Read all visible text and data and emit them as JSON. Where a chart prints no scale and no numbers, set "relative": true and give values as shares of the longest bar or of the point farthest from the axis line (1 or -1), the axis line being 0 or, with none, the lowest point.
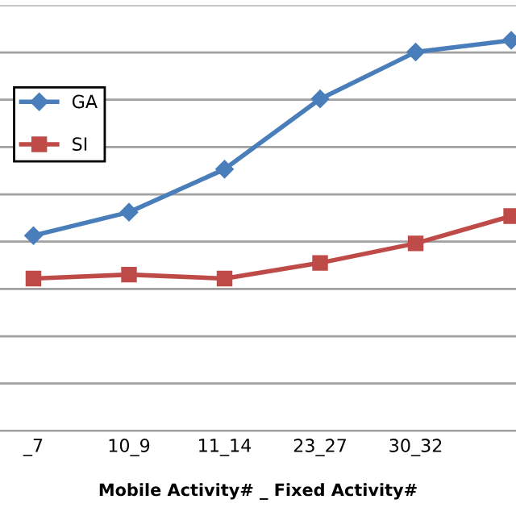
{
  "chart_data": {
    "type": "line",
    "relative": true,
    "xlabel": "Mobile Activity# _ Fixed Activity#",
    "categories": [
      "_7",
      "10_9",
      "11_14",
      "23_27",
      "30_32",
      null
    ],
    "series": [
      {
        "name": "GA",
        "color": "#4a7ebb",
        "marker": "diamond",
        "values": [
          0.5,
          0.56,
          0.67,
          0.85,
          0.97,
          1.0
        ]
      },
      {
        "name": "SI",
        "color": "#be4b48",
        "marker": "square",
        "values": [
          0.39,
          0.4,
          0.39,
          0.43,
          0.48,
          0.55
        ]
      }
    ],
    "grid": "y",
    "legend": "left"
  }
}
